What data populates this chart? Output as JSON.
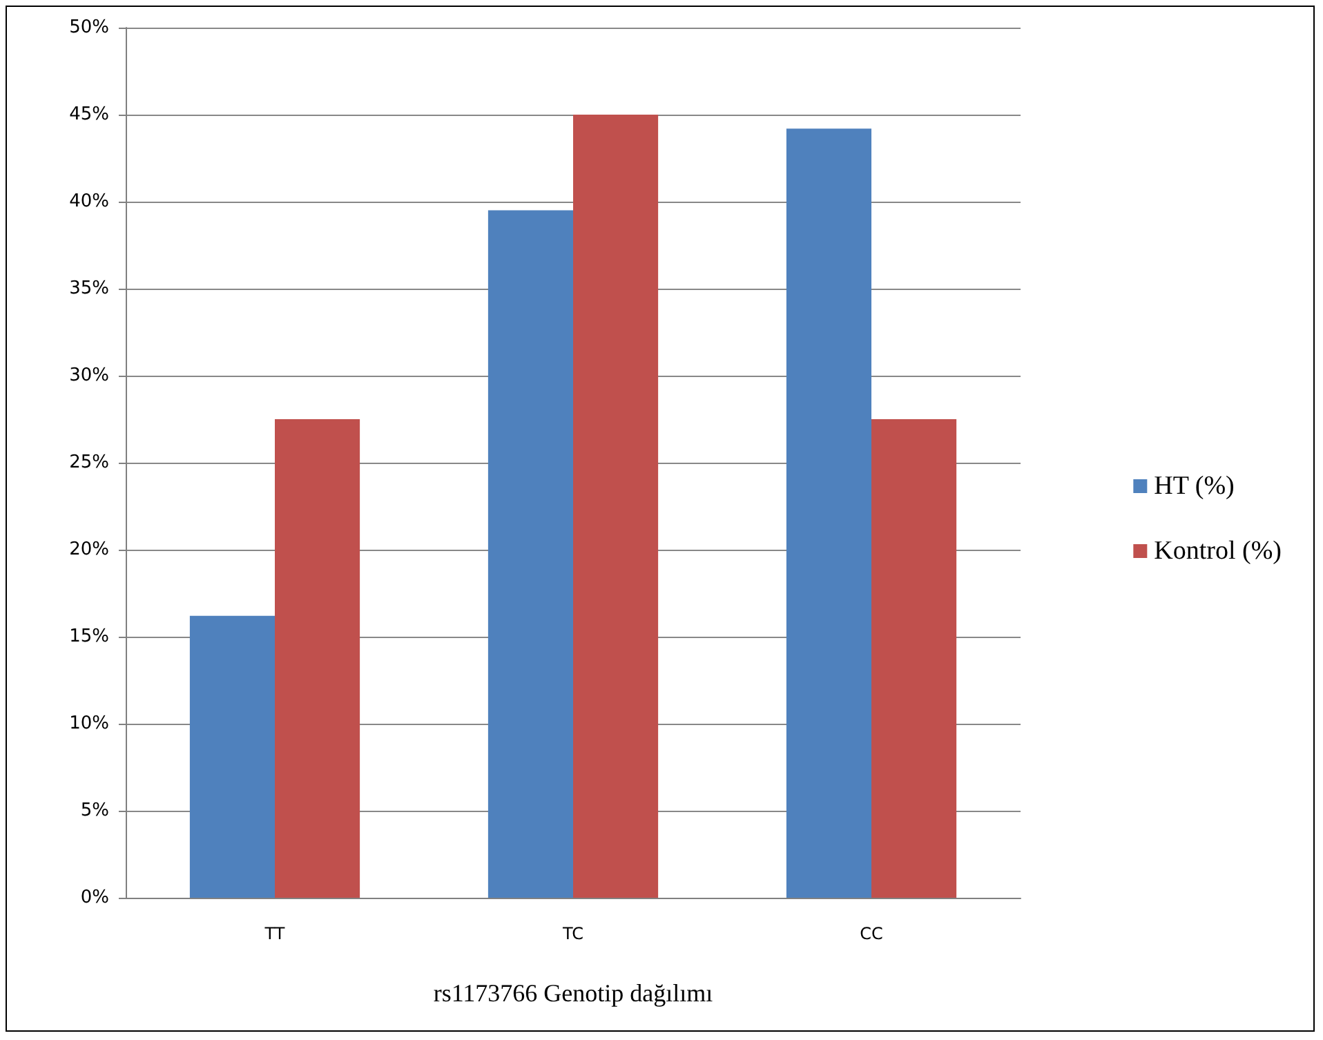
{
  "chart_data": {
    "type": "bar",
    "xlabel": "rs1173766 Genotip dağılımı",
    "categories": [
      "TT",
      "TC",
      "CC"
    ],
    "series": [
      {
        "name": "HT (%)",
        "color": "#4f81bd",
        "values": [
          16.2,
          39.5,
          44.2
        ]
      },
      {
        "name": "Kontrol (%)",
        "color": "#c0504d",
        "values": [
          27.5,
          45,
          27.5
        ]
      }
    ],
    "ylim": [
      0,
      50
    ],
    "yticks": [
      {
        "value": 0,
        "label": "0%"
      },
      {
        "value": 5,
        "label": "5%"
      },
      {
        "value": 10,
        "label": "10%"
      },
      {
        "value": 15,
        "label": "15%"
      },
      {
        "value": 20,
        "label": "20%"
      },
      {
        "value": 25,
        "label": "25%"
      },
      {
        "value": 30,
        "label": "30%"
      },
      {
        "value": 35,
        "label": "35%"
      },
      {
        "value": 40,
        "label": "40%"
      },
      {
        "value": 45,
        "label": "45%"
      },
      {
        "value": 50,
        "label": "50%"
      }
    ],
    "grid": "y",
    "legend": "right"
  }
}
